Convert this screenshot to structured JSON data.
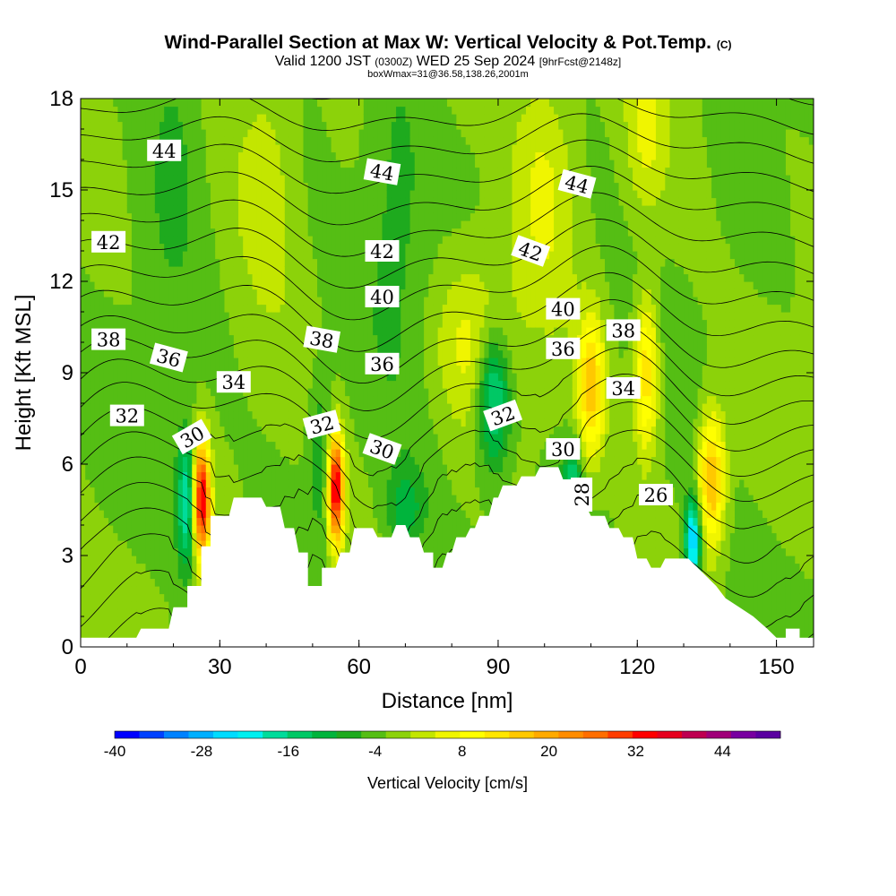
{
  "title": "Wind-Parallel Section at Max W: Vertical Velocity & Pot.Temp.",
  "copyright": "(C)",
  "subtitle_main": "Valid 1200 JST",
  "subtitle_utc": "(0300Z)",
  "subtitle_date": "WED 25 Sep 2024",
  "subtitle_fcst": "[9hrFcst@2148z]",
  "info_line": "boxWmax=31@36.58,138.26,2001m",
  "chart_data": {
    "type": "heatmap",
    "xlabel": "Distance [nm]",
    "ylabel": "Height [Kft MSL]",
    "xlim": [
      0,
      158
    ],
    "ylim": [
      0,
      18
    ],
    "x_ticks": [
      0,
      30,
      60,
      90,
      120,
      150
    ],
    "y_ticks": [
      0,
      3,
      6,
      9,
      12,
      15,
      18
    ],
    "terrain": [
      [
        0,
        0.3
      ],
      [
        12,
        0.3
      ],
      [
        13,
        0.6
      ],
      [
        19,
        0.6
      ],
      [
        20,
        1.3
      ],
      [
        23,
        1.3
      ],
      [
        23,
        2
      ],
      [
        26,
        2
      ],
      [
        26,
        3.3
      ],
      [
        28,
        3.3
      ],
      [
        28,
        4.3
      ],
      [
        32,
        4.3
      ],
      [
        33,
        4.9
      ],
      [
        39,
        4.9
      ],
      [
        40,
        4.6
      ],
      [
        43,
        4.6
      ],
      [
        44,
        3.9
      ],
      [
        46,
        3.9
      ],
      [
        47,
        3.1
      ],
      [
        49,
        3.1
      ],
      [
        49,
        2
      ],
      [
        52,
        2
      ],
      [
        52,
        2.6
      ],
      [
        55,
        2.6
      ],
      [
        56,
        3.1
      ],
      [
        58,
        3.1
      ],
      [
        59,
        3.9
      ],
      [
        63,
        3.9
      ],
      [
        64,
        3.6
      ],
      [
        67,
        3.6
      ],
      [
        68,
        4
      ],
      [
        70,
        4
      ],
      [
        71,
        3.6
      ],
      [
        73,
        3.6
      ],
      [
        74,
        3.1
      ],
      [
        76,
        3.1
      ],
      [
        76,
        2.6
      ],
      [
        78,
        2.6
      ],
      [
        79,
        3.1
      ],
      [
        80,
        3.1
      ],
      [
        81,
        3.6
      ],
      [
        83,
        3.6
      ],
      [
        84,
        3.9
      ],
      [
        85,
        3.9
      ],
      [
        86,
        4.3
      ],
      [
        88,
        4.3
      ],
      [
        89,
        4.9
      ],
      [
        90,
        4.9
      ],
      [
        91,
        5.3
      ],
      [
        94,
        5.3
      ],
      [
        95,
        5.6
      ],
      [
        98,
        5.6
      ],
      [
        99,
        5.9
      ],
      [
        103,
        5.9
      ],
      [
        104,
        5.5
      ],
      [
        107,
        5.5
      ],
      [
        108,
        4.9
      ],
      [
        110,
        4.3
      ],
      [
        113,
        4.3
      ],
      [
        114,
        3.9
      ],
      [
        116,
        3.9
      ],
      [
        117,
        3.6
      ],
      [
        119,
        3.6
      ],
      [
        120,
        2.9
      ],
      [
        122,
        2.9
      ],
      [
        123,
        2.6
      ],
      [
        125,
        2.6
      ],
      [
        126,
        2.9
      ],
      [
        131,
        2.9
      ],
      [
        133,
        2.6
      ],
      [
        135,
        2.3
      ],
      [
        137,
        2
      ],
      [
        139,
        1.6
      ],
      [
        142,
        1.3
      ],
      [
        145,
        1
      ],
      [
        148,
        0.6
      ],
      [
        150,
        0.3
      ],
      [
        152,
        0.3
      ],
      [
        152,
        0.6
      ],
      [
        155,
        0.6
      ],
      [
        155,
        0.3
      ],
      [
        158,
        0.3
      ]
    ],
    "updrafts": [
      {
        "x": 26,
        "y": 4.8,
        "w": 48,
        "sx": 1.3,
        "sy": 1.4
      },
      {
        "x": 55,
        "y": 5.2,
        "w": 48,
        "sx": 1.2,
        "sy": 1.3
      },
      {
        "x": 110,
        "y": 8.5,
        "w": 22,
        "sx": 2.0,
        "sy": 1.6
      },
      {
        "x": 122,
        "y": 9.0,
        "w": 20,
        "sx": 1.8,
        "sy": 1.8
      },
      {
        "x": 136,
        "y": 5.5,
        "w": 26,
        "sx": 2.0,
        "sy": 1.5
      },
      {
        "x": 100,
        "y": 15.5,
        "w": 9,
        "sx": 5.0,
        "sy": 3.0
      },
      {
        "x": 40,
        "y": 16.0,
        "w": 7,
        "sx": 5.0,
        "sy": 3.0
      },
      {
        "x": 85,
        "y": 10.0,
        "w": 10,
        "sx": 6.0,
        "sy": 2.0
      },
      {
        "x": 122,
        "y": 17.0,
        "w": 8,
        "sx": 3.0,
        "sy": 2.0
      }
    ],
    "downdrafts": [
      {
        "x": 23,
        "y": 4.8,
        "w": -22,
        "sx": 1.6,
        "sy": 1.6
      },
      {
        "x": 89,
        "y": 8.2,
        "w": -22,
        "sx": 2.5,
        "sy": 1.6
      },
      {
        "x": 132,
        "y": 3.5,
        "w": -30,
        "sx": 1.2,
        "sy": 1.0
      },
      {
        "x": 106,
        "y": 5.2,
        "w": -18,
        "sx": 1.5,
        "sy": 1.0
      },
      {
        "x": 70,
        "y": 4.5,
        "w": -10,
        "sx": 3.0,
        "sy": 1.0
      },
      {
        "x": 52,
        "y": 6.5,
        "w": -8,
        "sx": 2.0,
        "sy": 2.0
      },
      {
        "x": 20,
        "y": 16.5,
        "w": -6,
        "sx": 4.0,
        "sy": 3.0
      },
      {
        "x": 68,
        "y": 15.0,
        "w": -6,
        "sx": 5.0,
        "sy": 4.0
      }
    ],
    "theta_levels": [
      26,
      27,
      28,
      29,
      30,
      31,
      32,
      33,
      34,
      35,
      36,
      37,
      38,
      39,
      40,
      41,
      42,
      43,
      44,
      45,
      46
    ],
    "theta_labels": [
      {
        "text": "44",
        "x": 18,
        "y": 16.3,
        "rot": 0
      },
      {
        "text": "44",
        "x": 65,
        "y": 15.6,
        "rot": 10
      },
      {
        "text": "44",
        "x": 107,
        "y": 15.2,
        "rot": 15
      },
      {
        "text": "42",
        "x": 6,
        "y": 13.3,
        "rot": 0
      },
      {
        "text": "42",
        "x": 65,
        "y": 13.0,
        "rot": 0
      },
      {
        "text": "42",
        "x": 97,
        "y": 13.0,
        "rot": 20
      },
      {
        "text": "40",
        "x": 65,
        "y": 11.5,
        "rot": 0
      },
      {
        "text": "40",
        "x": 104,
        "y": 11.1,
        "rot": 0
      },
      {
        "text": "38",
        "x": 6,
        "y": 10.1,
        "rot": 0
      },
      {
        "text": "38",
        "x": 52,
        "y": 10.1,
        "rot": 10
      },
      {
        "text": "38",
        "x": 117,
        "y": 10.4,
        "rot": 0
      },
      {
        "text": "36",
        "x": 19,
        "y": 9.5,
        "rot": 15
      },
      {
        "text": "36",
        "x": 65,
        "y": 9.3,
        "rot": 0
      },
      {
        "text": "36",
        "x": 104,
        "y": 9.8,
        "rot": 0
      },
      {
        "text": "34",
        "x": 33,
        "y": 8.7,
        "rot": 0
      },
      {
        "text": "34",
        "x": 117,
        "y": 8.5,
        "rot": 0
      },
      {
        "text": "32",
        "x": 10,
        "y": 7.6,
        "rot": 0
      },
      {
        "text": "32",
        "x": 52,
        "y": 7.3,
        "rot": -15
      },
      {
        "text": "32",
        "x": 91,
        "y": 7.6,
        "rot": -20
      },
      {
        "text": "30",
        "x": 24,
        "y": 6.9,
        "rot": -30
      },
      {
        "text": "30",
        "x": 65,
        "y": 6.5,
        "rot": 20
      },
      {
        "text": "30",
        "x": 104,
        "y": 6.5,
        "rot": 0
      },
      {
        "text": "28",
        "x": 108,
        "y": 5.0,
        "rot": -90
      },
      {
        "text": "26",
        "x": 124,
        "y": 5.0,
        "rot": 0
      }
    ],
    "colorbar": {
      "label": "Vertical Velocity [cm/s]",
      "min": -40,
      "max": 52,
      "step": 4,
      "tick_labels": [
        "-40",
        "-28",
        "-16",
        "-4",
        "8",
        "20",
        "32",
        "44"
      ],
      "colors": [
        "#0000ff",
        "#0041ff",
        "#0082ff",
        "#00b0ff",
        "#00dcff",
        "#00f0f0",
        "#00dc9b",
        "#00c865",
        "#00b43c",
        "#1eaa1e",
        "#55be14",
        "#8cd20a",
        "#c3e600",
        "#f0f500",
        "#ffff00",
        "#ffe600",
        "#ffc800",
        "#ffaa00",
        "#ff8c00",
        "#ff6e00",
        "#ff3c00",
        "#ff0000",
        "#e6001e",
        "#be0050",
        "#a00078",
        "#7800a0",
        "#5a00a0"
      ]
    }
  }
}
